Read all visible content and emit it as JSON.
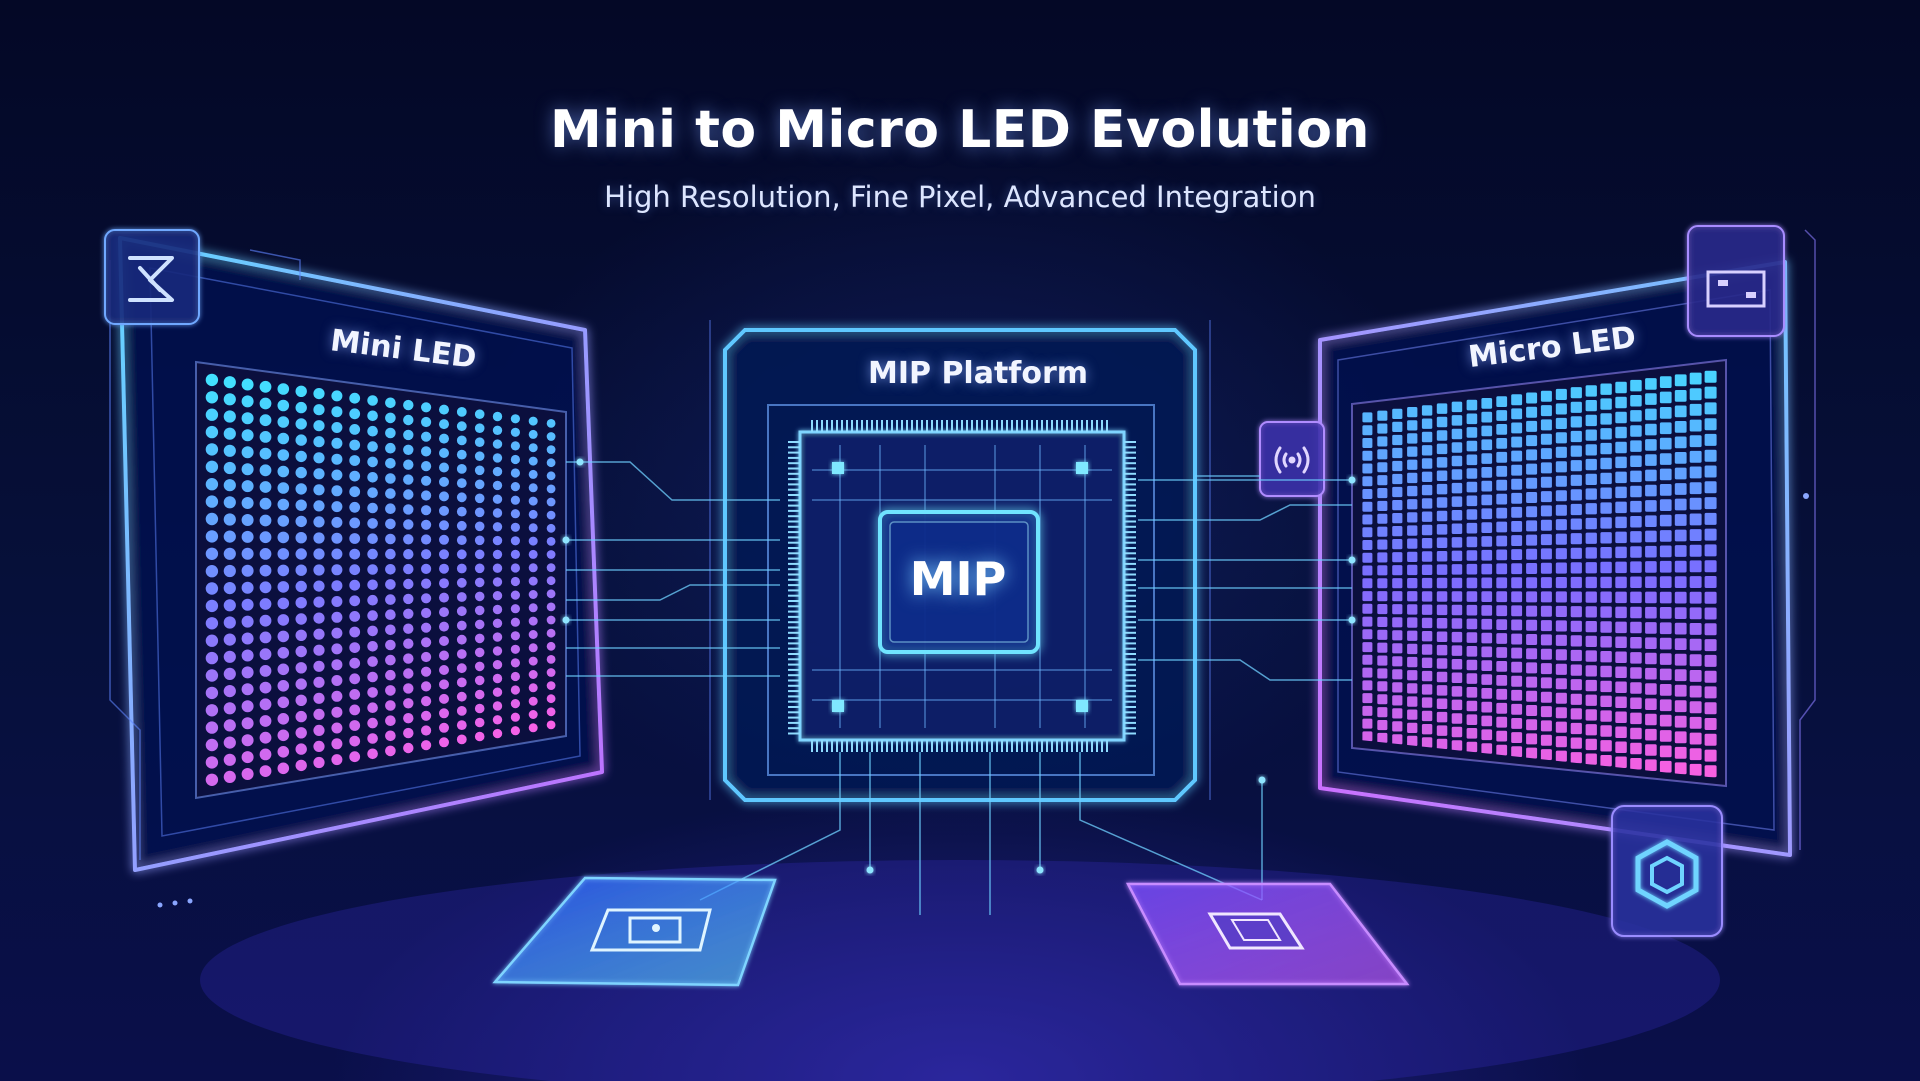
{
  "header": {
    "title": "Mini to Micro LED Evolution",
    "subtitle": "High Resolution, Fine Pixel, Advanced Integration"
  },
  "panels": {
    "mini": {
      "label": "Mini LED"
    },
    "center": {
      "label": "MIP Platform",
      "chip_label": "MIP"
    },
    "micro": {
      "label": "Micro LED"
    }
  },
  "icons": [
    "circuit-icon",
    "display-frame-icon",
    "signal-icon",
    "hexagon-icon",
    "target-icon",
    "chip-square-icon"
  ],
  "colors": {
    "background": "#050a2a",
    "accent_cyan": "#5fd8ff",
    "accent_purple": "#b46bff",
    "accent_pink": "#ff62e0",
    "accent_blue": "#4a78ff"
  }
}
